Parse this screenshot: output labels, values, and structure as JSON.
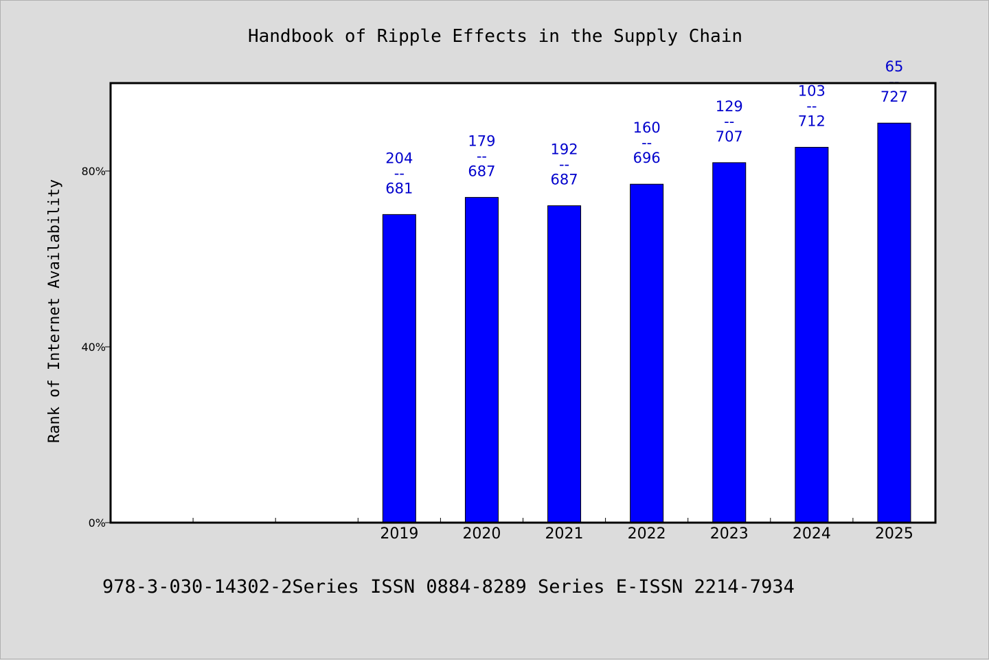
{
  "chart_data": {
    "type": "bar",
    "title": "Handbook of Ripple Effects in the Supply Chain",
    "ylabel": "Rank of Internet Availability",
    "xlabel": "",
    "ylim": [
      0,
      100
    ],
    "y_ticks": [
      {
        "value": 0,
        "label": "0%"
      },
      {
        "value": 40,
        "label": "40%"
      },
      {
        "value": 80,
        "label": "80%"
      }
    ],
    "x_slots": 10,
    "categories": [
      "2019",
      "2020",
      "2021",
      "2022",
      "2023",
      "2024",
      "2025"
    ],
    "category_slot_start": 3,
    "values": [
      70.1,
      74.0,
      72.1,
      77.0,
      81.9,
      85.4,
      90.9
    ],
    "data_labels": [
      {
        "top": "204",
        "sep": "--",
        "bottom": "681"
      },
      {
        "top": "179",
        "sep": "--",
        "bottom": "687"
      },
      {
        "top": "192",
        "sep": "--",
        "bottom": "687"
      },
      {
        "top": "160",
        "sep": "--",
        "bottom": "696"
      },
      {
        "top": "129",
        "sep": "--",
        "bottom": "707"
      },
      {
        "top": "103",
        "sep": "--",
        "bottom": "712"
      },
      {
        "top": "65",
        "sep": "--",
        "bottom": "727"
      }
    ],
    "bar_color": "#0000ff",
    "label_color": "#0000cc",
    "grid": false,
    "legend": "none"
  },
  "footer": "978-3-030-14302-2Series ISSN 0884-8289 Series E-ISSN 2214-7934"
}
